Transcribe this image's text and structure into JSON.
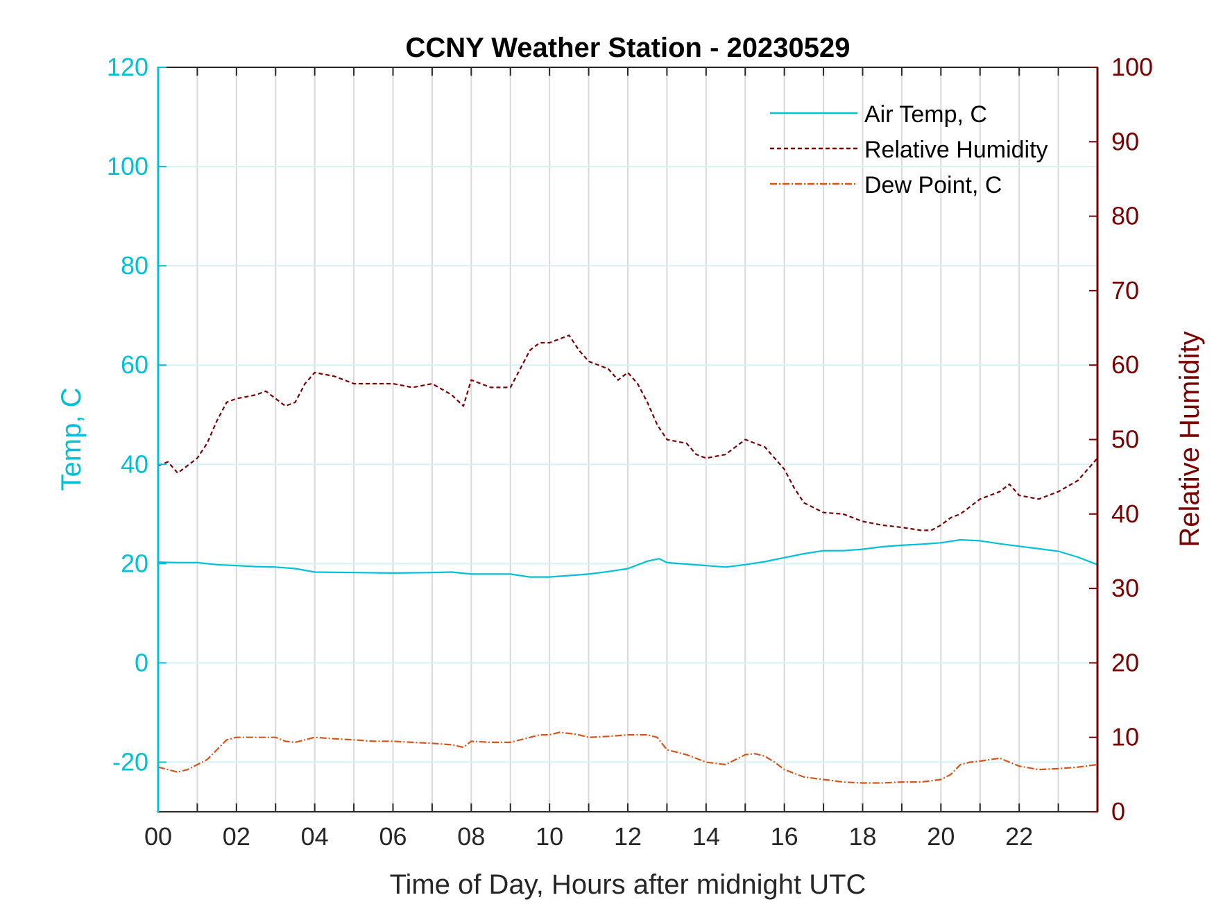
{
  "chart_data": {
    "type": "line",
    "title": "CCNY Weather Station - 20230529",
    "xlabel": "Time of Day, Hours after midnight UTC",
    "ylabel_left": "Temp, C",
    "ylabel_right": "Relative Humidity",
    "xlim": [
      0,
      24
    ],
    "ylim_left": [
      -30,
      120
    ],
    "ylim_right": [
      0,
      100
    ],
    "x_ticks": [
      0,
      2,
      4,
      6,
      8,
      10,
      12,
      14,
      16,
      18,
      20,
      22
    ],
    "x_tick_labels": [
      "00",
      "02",
      "04",
      "06",
      "08",
      "10",
      "12",
      "14",
      "16",
      "18",
      "20",
      "22"
    ],
    "y_left_ticks": [
      -20,
      0,
      20,
      40,
      60,
      80,
      100,
      120
    ],
    "y_left_tick_labels": [
      "-20",
      "0",
      "20",
      "40",
      "60",
      "80",
      "100",
      "120"
    ],
    "y_right_ticks": [
      0,
      10,
      20,
      30,
      40,
      50,
      60,
      70,
      80,
      90,
      100
    ],
    "y_right_tick_labels": [
      "0",
      "10",
      "20",
      "30",
      "40",
      "50",
      "60",
      "70",
      "80",
      "90",
      "100"
    ],
    "grid": "vertical lines every hour; horizontal lines at left-axis ticks",
    "legend_position": "top-right",
    "series": [
      {
        "name": "Air Temp, C",
        "axis": "left",
        "color": "#00c0d8",
        "style": "solid",
        "x": [
          0,
          0.5,
          1,
          1.5,
          2,
          2.5,
          3,
          3.5,
          4,
          5,
          6,
          7,
          7.5,
          8,
          9,
          9.5,
          10,
          10.5,
          11,
          11.5,
          12,
          12.5,
          12.8,
          13,
          14,
          14.5,
          15,
          15.5,
          16,
          16.5,
          17,
          17.5,
          18,
          18.5,
          19,
          19.5,
          20,
          20.5,
          21,
          21.5,
          22,
          22.5,
          23,
          23.5,
          24
        ],
        "y": [
          20.3,
          20.2,
          20.2,
          19.8,
          19.6,
          19.4,
          19.3,
          19.0,
          18.3,
          18.2,
          18.1,
          18.2,
          18.3,
          17.9,
          17.9,
          17.3,
          17.3,
          17.6,
          17.9,
          18.4,
          19.0,
          20.5,
          21.0,
          20.2,
          19.6,
          19.3,
          19.8,
          20.4,
          21.2,
          22.0,
          22.6,
          22.6,
          22.9,
          23.4,
          23.7,
          23.9,
          24.2,
          24.8,
          24.6,
          24.0,
          23.5,
          23.0,
          22.5,
          21.3,
          19.8
        ]
      },
      {
        "name": "Relative Humidity",
        "axis": "right",
        "color": "#7a0000",
        "style": "dashed",
        "x": [
          0,
          0.25,
          0.5,
          0.75,
          1,
          1.25,
          1.5,
          1.75,
          2,
          2.5,
          2.75,
          3,
          3.25,
          3.5,
          3.75,
          4,
          4.5,
          5,
          5.5,
          6,
          6.5,
          7,
          7.5,
          7.8,
          8,
          8.5,
          9,
          9.25,
          9.5,
          9.75,
          10,
          10.25,
          10.5,
          10.75,
          11,
          11.5,
          11.75,
          12,
          12.25,
          12.5,
          12.75,
          13,
          13.5,
          13.75,
          14,
          14.5,
          14.75,
          15,
          15.25,
          15.5,
          15.75,
          16,
          16.25,
          16.5,
          17,
          17.5,
          18,
          18.5,
          19,
          19.5,
          19.75,
          20,
          20.25,
          20.5,
          20.75,
          21,
          21.25,
          21.5,
          21.75,
          22,
          22.5,
          23,
          23.5,
          24
        ],
        "y": [
          46.5,
          47.0,
          45.5,
          46.5,
          47.5,
          49.5,
          52.5,
          55.0,
          55.5,
          56.0,
          56.5,
          55.5,
          54.5,
          55.0,
          57.5,
          59.0,
          58.5,
          57.5,
          57.5,
          57.5,
          57.0,
          57.5,
          56.0,
          54.5,
          58.0,
          57.0,
          57.0,
          59.5,
          62.0,
          63.0,
          63.0,
          63.5,
          64.0,
          62.0,
          60.5,
          59.5,
          58.0,
          59.0,
          57.5,
          55.0,
          52.0,
          50.0,
          49.5,
          48.0,
          47.5,
          48.0,
          49.0,
          50.0,
          49.5,
          49.0,
          47.5,
          46.0,
          43.5,
          41.5,
          40.2,
          40.0,
          39.0,
          38.5,
          38.2,
          37.8,
          37.8,
          38.5,
          39.5,
          40.0,
          41.0,
          42.0,
          42.5,
          43.0,
          44.0,
          42.5,
          42.0,
          43.0,
          44.5,
          47.5
        ]
      },
      {
        "name": "Dew Point, C",
        "axis": "left",
        "color": "#d95319",
        "style": "dash-dot",
        "x": [
          0,
          0.25,
          0.5,
          0.75,
          1,
          1.25,
          1.5,
          1.75,
          2,
          2.5,
          3,
          3.25,
          3.5,
          3.75,
          4,
          4.5,
          5,
          5.5,
          6,
          6.5,
          7,
          7.5,
          7.8,
          8,
          8.5,
          9,
          9.25,
          9.5,
          9.75,
          10,
          10.25,
          10.5,
          10.75,
          11,
          11.5,
          12,
          12.5,
          12.75,
          13,
          13.5,
          14,
          14.5,
          14.75,
          15,
          15.25,
          15.5,
          15.75,
          16,
          16.5,
          17,
          17.5,
          18,
          18.5,
          19,
          19.5,
          20,
          20.25,
          20.5,
          20.75,
          21,
          21.25,
          21.5,
          21.75,
          22,
          22.5,
          23,
          23.5,
          24
        ],
        "y": [
          -21.0,
          -21.5,
          -22.0,
          -21.5,
          -20.5,
          -19.5,
          -17.5,
          -15.5,
          -15.0,
          -15.0,
          -15.0,
          -15.8,
          -16.0,
          -15.5,
          -15.0,
          -15.3,
          -15.5,
          -15.8,
          -15.8,
          -16.0,
          -16.2,
          -16.5,
          -17.0,
          -15.8,
          -16.0,
          -16.0,
          -15.5,
          -15.0,
          -14.5,
          -14.5,
          -14.0,
          -14.2,
          -14.5,
          -15.0,
          -14.8,
          -14.5,
          -14.5,
          -15.0,
          -17.5,
          -18.5,
          -20.0,
          -20.5,
          -19.5,
          -18.5,
          -18.3,
          -18.8,
          -20.0,
          -21.5,
          -23.0,
          -23.5,
          -24.0,
          -24.2,
          -24.2,
          -24.0,
          -24.0,
          -23.5,
          -22.5,
          -20.5,
          -20.0,
          -19.8,
          -19.5,
          -19.2,
          -20.0,
          -20.8,
          -21.5,
          -21.3,
          -21.0,
          -20.5
        ]
      }
    ]
  }
}
